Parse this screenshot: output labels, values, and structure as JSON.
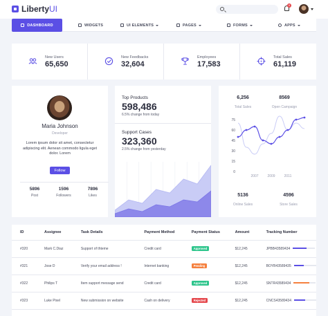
{
  "brand": {
    "name": "Liberty",
    "suffix": "UI",
    "accent": "#5b4fe5"
  },
  "topbar": {
    "search_placeholder": "",
    "notifications": "5"
  },
  "nav": [
    {
      "label": "DASHBOARD",
      "icon": "monitor-icon",
      "dropdown": false
    },
    {
      "label": "WIDGETS",
      "icon": "layers-icon",
      "dropdown": false
    },
    {
      "label": "UI ELEMENTS",
      "icon": "grid-icon",
      "dropdown": true
    },
    {
      "label": "PAGES",
      "icon": "file-icon",
      "dropdown": true
    },
    {
      "label": "FORMS",
      "icon": "clipboard-icon",
      "dropdown": true
    },
    {
      "label": "APPS",
      "icon": "gear-icon",
      "dropdown": true
    }
  ],
  "stats": [
    {
      "label": "New Users",
      "value": "65,650",
      "icon": "users-icon"
    },
    {
      "label": "New Feedbacks",
      "value": "32,604",
      "icon": "check-circle-icon"
    },
    {
      "label": "Employees",
      "value": "17,583",
      "icon": "trophy-icon"
    },
    {
      "label": "Total Sales",
      "value": "61,119",
      "icon": "crosshair-icon"
    }
  ],
  "profile": {
    "name": "Maria Johnson",
    "role": "Developer",
    "bio": "Lorem ipsum dolor sit amet, consectetur adipiscing elit. Aenean commodo ligula eget dolor. Lorem",
    "follow_label": "Follow",
    "stats": [
      {
        "value": "5896",
        "label": "Post"
      },
      {
        "value": "1596",
        "label": "Followers"
      },
      {
        "value": "7896",
        "label": "Likes"
      }
    ]
  },
  "products": {
    "top_title": "Top Products",
    "top_value": "598,486",
    "top_change": "6.5% change from today",
    "support_title": "Support Cases",
    "support_value": "323,360",
    "support_change": "2.5% change from yesterday"
  },
  "line_card": {
    "top": [
      {
        "value": "6,256",
        "label": "Total Sales"
      },
      {
        "value": "8569",
        "label": "Open Campaign"
      }
    ],
    "bottom": [
      {
        "value": "5136",
        "label": "Online Sales"
      },
      {
        "value": "4596",
        "label": "Store Sales"
      }
    ]
  },
  "chart_data": [
    {
      "type": "area",
      "series": [
        {
          "values": [
            10,
            25,
            20,
            40,
            35,
            55,
            48,
            75
          ]
        },
        {
          "values": [
            5,
            12,
            8,
            18,
            15,
            25,
            22,
            38
          ]
        }
      ],
      "colors": [
        "#c9ccf6",
        "#8d88ea"
      ]
    },
    {
      "type": "line",
      "x": [
        2005,
        2006,
        2007,
        2008,
        2009,
        2010,
        2011,
        2012,
        2013
      ],
      "x_tick_labels": [
        "2007",
        "2009",
        "2011"
      ],
      "series": [
        {
          "values": [
            50,
            60,
            65,
            45,
            40,
            50,
            60,
            75,
            78
          ],
          "color": "#5b4fe5"
        },
        {
          "values": [
            70,
            35,
            25,
            40,
            55,
            80,
            60,
            70,
            62
          ],
          "color": "#c9ccf6"
        }
      ],
      "yticks": [
        0,
        15,
        30,
        45,
        60,
        75
      ],
      "ylim": [
        0,
        80
      ]
    }
  ],
  "table": {
    "headers": [
      "ID",
      "Assignee",
      "Task Details",
      "Payment Method",
      "Payment Status",
      "Amount",
      "Tracking Number"
    ],
    "rows": [
      {
        "id": "#320",
        "assignee": "Mark C.Diaz",
        "task": "Support of thteme",
        "method": "Credit card",
        "status": "Approved",
        "status_color": "#2ec58c",
        "amount": "$12,245",
        "tracking": "JPBB43589434",
        "progress": 0.6,
        "progress_color": "#5b4fe5"
      },
      {
        "id": "#321",
        "assignee": "Jose D",
        "task": "Verify your email address !",
        "method": "Internet banking",
        "status": "Pending",
        "status_color": "#f5803e",
        "amount": "$12,245",
        "tracking": "BOYB43589435",
        "progress": 0.45,
        "progress_color": "#5b4fe5"
      },
      {
        "id": "#322",
        "assignee": "Philips T",
        "task": "Item support message send",
        "method": "Credit card",
        "status": "Approved",
        "status_color": "#2ec58c",
        "amount": "$12,245",
        "tracking": "SNTR43589434",
        "progress": 0.7,
        "progress_color": "#f5803e"
      },
      {
        "id": "#323",
        "assignee": "Luke Pixel",
        "task": "New submission on website",
        "method": "Cash on delivery",
        "status": "Rejected",
        "status_color": "#e5484d",
        "amount": "$12,245",
        "tracking": "CNCS43589434",
        "progress": 0.5,
        "progress_color": "#5b4fe5"
      }
    ]
  }
}
